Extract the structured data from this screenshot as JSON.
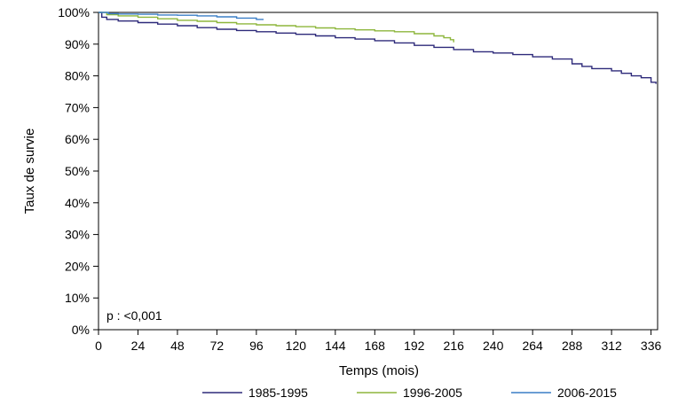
{
  "chart_data": {
    "type": "line",
    "xlabel": "Temps (mois)",
    "ylabel": "Taux de survie",
    "annotation": "p : <0,001",
    "xlim": [
      0,
      340
    ],
    "ylim": [
      0,
      100
    ],
    "x_ticks": [
      0,
      24,
      48,
      72,
      96,
      120,
      144,
      168,
      192,
      216,
      240,
      264,
      288,
      312,
      336
    ],
    "y_ticks": [
      0,
      10,
      20,
      30,
      40,
      50,
      60,
      70,
      80,
      90,
      100
    ],
    "y_tick_labels": [
      "0%",
      "10%",
      "20%",
      "30%",
      "40%",
      "50%",
      "60%",
      "70%",
      "80%",
      "90%",
      "100%"
    ],
    "grid": false,
    "legend_position": "bottom",
    "series": [
      {
        "name": "1985-1995",
        "color": "#2e2a7a",
        "x": [
          0,
          2,
          5,
          12,
          24,
          36,
          48,
          60,
          72,
          84,
          96,
          108,
          120,
          132,
          144,
          156,
          168,
          180,
          192,
          204,
          216,
          228,
          240,
          252,
          264,
          276,
          288,
          294,
          300,
          312,
          318,
          324,
          330,
          336,
          339
        ],
        "y": [
          100,
          98.5,
          97.8,
          97.3,
          96.8,
          96.3,
          95.8,
          95.2,
          94.7,
          94.3,
          93.9,
          93.5,
          93.1,
          92.6,
          92.0,
          91.6,
          91.1,
          90.4,
          89.6,
          89.0,
          88.3,
          87.6,
          87.2,
          86.7,
          86.0,
          85.3,
          83.8,
          83.0,
          82.3,
          81.6,
          80.8,
          80.0,
          79.4,
          78.0,
          77.5
        ]
      },
      {
        "name": "1996-2005",
        "color": "#8db63c",
        "x": [
          0,
          5,
          12,
          24,
          36,
          48,
          60,
          72,
          84,
          96,
          108,
          120,
          132,
          144,
          156,
          168,
          180,
          192,
          204,
          210,
          214,
          216
        ],
        "y": [
          100,
          99.3,
          98.9,
          98.5,
          98.0,
          97.5,
          97.2,
          96.8,
          96.4,
          96.1,
          95.8,
          95.5,
          95.1,
          94.8,
          94.5,
          94.2,
          93.9,
          93.3,
          92.6,
          92.0,
          91.4,
          90.6
        ]
      },
      {
        "name": "2006-2015",
        "color": "#3a7ec6",
        "x": [
          0,
          6,
          12,
          24,
          36,
          48,
          60,
          72,
          84,
          96,
          100
        ],
        "y": [
          100,
          99.6,
          99.5,
          99.4,
          99.2,
          99.1,
          98.9,
          98.6,
          98.2,
          97.8,
          97.6
        ]
      }
    ]
  }
}
